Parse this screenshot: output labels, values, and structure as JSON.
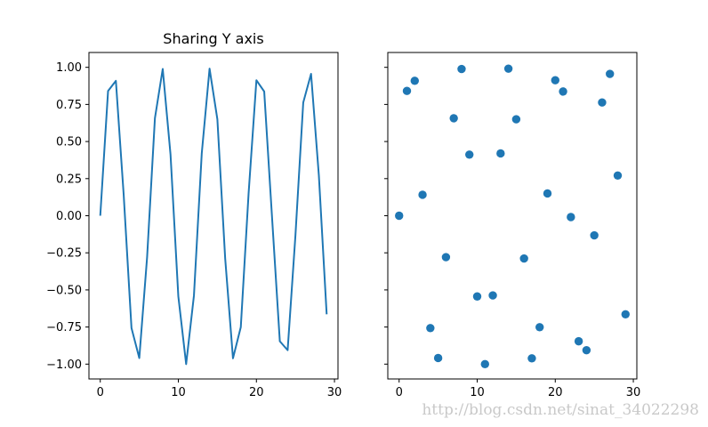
{
  "chart_data": [
    {
      "type": "line",
      "title": "Sharing Y axis",
      "xlabel": "",
      "ylabel": "",
      "x": [
        0,
        1,
        2,
        3,
        4,
        5,
        6,
        7,
        8,
        9,
        10,
        11,
        12,
        13,
        14,
        15,
        16,
        17,
        18,
        19,
        20,
        21,
        22,
        23,
        24,
        25,
        26,
        27,
        28,
        29
      ],
      "y": [
        0.0,
        0.841,
        0.909,
        0.141,
        -0.757,
        -0.959,
        -0.279,
        0.657,
        0.989,
        0.412,
        -0.544,
        -1.0,
        -0.537,
        0.42,
        0.991,
        0.65,
        -0.288,
        -0.961,
        -0.751,
        0.15,
        0.913,
        0.837,
        -0.009,
        -0.846,
        -0.906,
        -0.132,
        0.763,
        0.956,
        0.271,
        -0.664
      ],
      "xlim": [
        -1.45,
        30.45
      ],
      "ylim": [
        -1.1,
        1.1
      ],
      "xticks": [
        "0",
        "10",
        "20",
        "30"
      ],
      "yticks": [
        "1.00",
        "0.75",
        "0.50",
        "0.25",
        "0.00",
        "−0.25",
        "−0.50",
        "−0.75",
        "−1.00"
      ],
      "color": "#1f77b4",
      "grid": false
    },
    {
      "type": "scatter",
      "title": "",
      "xlabel": "",
      "ylabel": "",
      "x": [
        0,
        1,
        2,
        3,
        4,
        5,
        6,
        7,
        8,
        9,
        10,
        11,
        12,
        13,
        14,
        15,
        16,
        17,
        18,
        19,
        20,
        21,
        22,
        23,
        24,
        25,
        26,
        27,
        28,
        29
      ],
      "y": [
        0.0,
        0.841,
        0.909,
        0.141,
        -0.757,
        -0.959,
        -0.279,
        0.657,
        0.989,
        0.412,
        -0.544,
        -1.0,
        -0.537,
        0.42,
        0.991,
        0.65,
        -0.288,
        -0.961,
        -0.751,
        0.15,
        0.913,
        0.837,
        -0.009,
        -0.846,
        -0.906,
        -0.132,
        0.763,
        0.956,
        0.271,
        -0.664
      ],
      "xlim": [
        -1.45,
        30.45
      ],
      "ylim": [
        -1.1,
        1.1
      ],
      "xticks": [
        "0",
        "10",
        "20",
        "30"
      ],
      "sharey": true,
      "color": "#1f77b4",
      "grid": false
    }
  ],
  "watermark": "http://blog.csdn.net/sinat_34022298"
}
